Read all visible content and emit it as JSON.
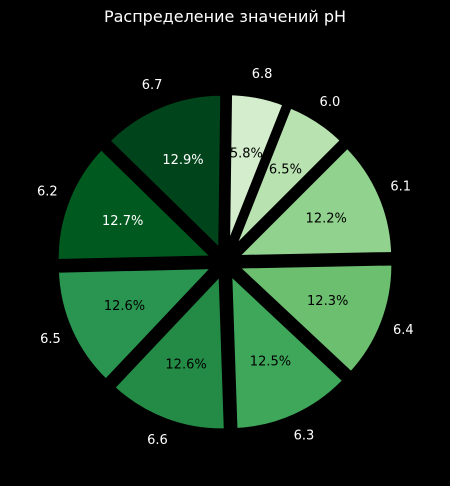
{
  "chart_data": {
    "type": "pie",
    "title": "Распределение значений pH",
    "slices": [
      {
        "label": "6.1",
        "value": 12.2,
        "pct_label": "12.2%",
        "color": "#92d28f"
      },
      {
        "label": "6.4",
        "value": 12.3,
        "pct_label": "12.3%",
        "color": "#6bbf6f"
      },
      {
        "label": "6.3",
        "value": 12.5,
        "pct_label": "12.5%",
        "color": "#3ea75a"
      },
      {
        "label": "6.6",
        "value": 12.6,
        "pct_label": "12.6%",
        "color": "#238b45"
      },
      {
        "label": "6.5",
        "value": 12.6,
        "pct_label": "12.6%",
        "color": "#2a9550"
      },
      {
        "label": "6.2",
        "value": 12.7,
        "pct_label": "12.7%",
        "color": "#005a1f"
      },
      {
        "label": "6.7",
        "value": 12.9,
        "pct_label": "12.9%",
        "color": "#00441b"
      },
      {
        "label": "6.8",
        "value": 5.8,
        "pct_label": "5.8%",
        "color": "#d4eecd"
      },
      {
        "label": "6.0",
        "value": 6.5,
        "pct_label": "6.5%",
        "color": "#b8e2b0"
      }
    ],
    "start_label": "6.1",
    "direction": "clockwise",
    "exploded": true,
    "background": "#000000",
    "edge_color": "#000000",
    "legend": "none"
  }
}
